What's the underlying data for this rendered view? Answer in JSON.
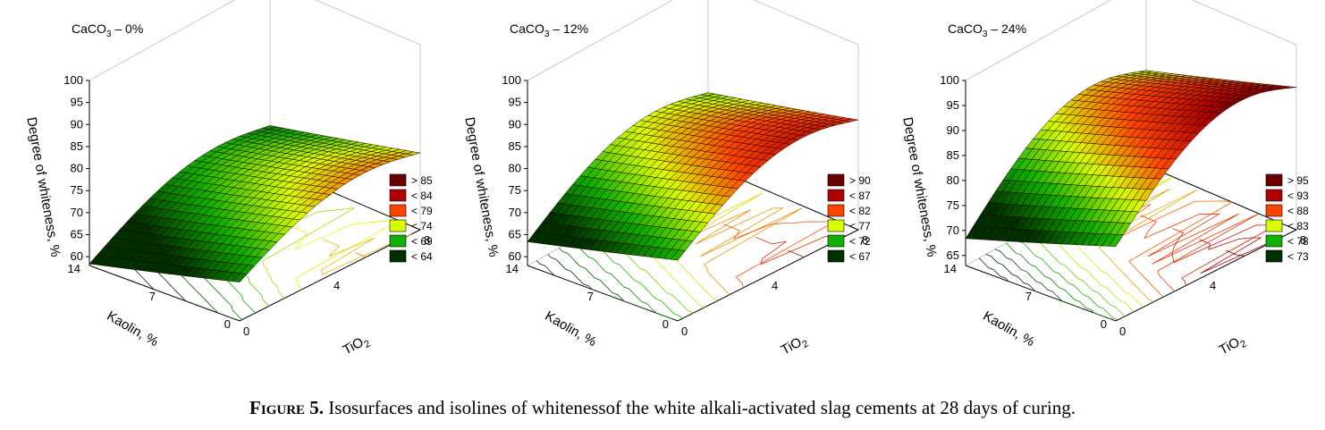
{
  "figure": {
    "caption_label": "Figure 5.",
    "caption_text": " Isosurfaces and isolines of whitenessof the white alkali-activated slag cements at 28 days of curing."
  },
  "chart_data": [
    {
      "type": "surface3d",
      "title_main": "CaCO",
      "title_sub": "3",
      "title_rest": " – 0%",
      "zlabel": "Degree of whiteness, %",
      "ylabel": "Kaolin, %",
      "xlabel_main": "TiO",
      "xlabel_sub": "2",
      "x_ticks": [
        "0",
        "4",
        "8"
      ],
      "y_ticks": [
        "0",
        "7",
        "14"
      ],
      "z_ticks": [
        "60",
        "65",
        "70",
        "75",
        "80",
        "85",
        "90",
        "95",
        "100"
      ],
      "xlim": [
        0,
        8
      ],
      "ylim": [
        0,
        14
      ],
      "zlim": [
        58,
        100
      ],
      "surface": {
        "base": 58,
        "kaolin_gain": 16,
        "tio2_peak": 7,
        "kaolin_mod": 0.2
      },
      "legend": [
        "> 85",
        "< 84",
        "< 79",
        "< 74",
        "< 69",
        "< 64"
      ],
      "legend_colors": [
        "#6a0000",
        "#b00000",
        "#ff4400",
        "#d8ff00",
        "#10b000",
        "#003000"
      ],
      "color_thresholds": [
        85,
        84,
        79,
        74,
        69,
        64
      ]
    },
    {
      "type": "surface3d",
      "title_main": "CaCO",
      "title_sub": "3",
      "title_rest": " – 12%",
      "zlabel": "Degree of whiteness, %",
      "ylabel": "Kaolin, %",
      "xlabel_main": "TiO",
      "xlabel_sub": "2",
      "x_ticks": [
        "0",
        "4",
        "8"
      ],
      "y_ticks": [
        "0",
        "7",
        "14"
      ],
      "z_ticks": [
        "60",
        "65",
        "70",
        "75",
        "80",
        "85",
        "90",
        "95",
        "100"
      ],
      "xlim": [
        0,
        8
      ],
      "ylim": [
        0,
        14
      ],
      "zlim": [
        58,
        100
      ],
      "surface": {
        "base": 63,
        "kaolin_gain": 16,
        "tio2_peak": 9,
        "kaolin_mod": 0.2
      },
      "legend": [
        "> 90",
        "< 87",
        "< 82",
        "< 77",
        "< 72",
        "< 67"
      ],
      "legend_colors": [
        "#6a0000",
        "#b00000",
        "#ff4400",
        "#d8ff00",
        "#10b000",
        "#003000"
      ],
      "color_thresholds": [
        90,
        87,
        82,
        77,
        72,
        67
      ]
    },
    {
      "type": "surface3d",
      "title_main": "CaCO",
      "title_sub": "3",
      "title_rest": " – 24%",
      "zlabel": "Degree of whiteness, %",
      "ylabel": "Kaolin, %",
      "xlabel_main": "TiO",
      "xlabel_sub": "2",
      "x_ticks": [
        "0",
        "4",
        "8"
      ],
      "y_ticks": [
        "0",
        "7",
        "14"
      ],
      "z_ticks": [
        "65",
        "70",
        "75",
        "80",
        "85",
        "90",
        "95",
        "100"
      ],
      "xlim": [
        0,
        8
      ],
      "ylim": [
        0,
        14
      ],
      "zlim": [
        63,
        100
      ],
      "surface": {
        "base": 68,
        "kaolin_gain": 18,
        "tio2_peak": 11,
        "kaolin_mod": 0.2
      },
      "legend": [
        "> 95",
        "< 93",
        "< 88",
        "< 83",
        "< 78",
        "< 73"
      ],
      "legend_colors": [
        "#6a0000",
        "#b00000",
        "#ff4400",
        "#d8ff00",
        "#10b000",
        "#003000"
      ],
      "color_thresholds": [
        95,
        93,
        88,
        83,
        78,
        73
      ]
    }
  ]
}
